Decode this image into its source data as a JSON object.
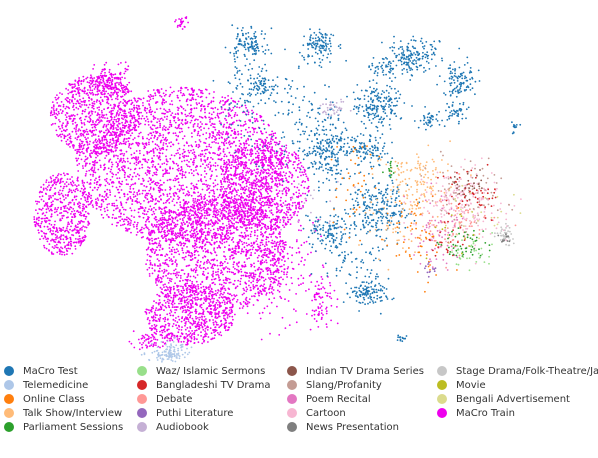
{
  "chart_data": {
    "type": "scatter",
    "title": "",
    "xlabel": "",
    "ylabel": "",
    "axes_visible": false,
    "grid": false,
    "legend_placement": "bottom",
    "legend_columns": 4,
    "series": [
      {
        "name": "MaCro Test",
        "color": "#1f77b4"
      },
      {
        "name": "Telemedicine",
        "color": "#aec7e8"
      },
      {
        "name": "Online Class",
        "color": "#ff7f0e"
      },
      {
        "name": "Talk Show/Interview",
        "color": "#ffbb78"
      },
      {
        "name": "Parliament Sessions",
        "color": "#2ca02c"
      },
      {
        "name": "Waz/ Islamic Sermons",
        "color": "#98df8a"
      },
      {
        "name": "Bangladeshi TV Drama",
        "color": "#d62728"
      },
      {
        "name": "Debate",
        "color": "#ff9896"
      },
      {
        "name": "Puthi Literature",
        "color": "#9467bd"
      },
      {
        "name": "Audiobook",
        "color": "#c5b0d5"
      },
      {
        "name": "Indian TV Drama Series",
        "color": "#8c564b"
      },
      {
        "name": "Slang/Profanity",
        "color": "#c49c94"
      },
      {
        "name": "Poem Recital",
        "color": "#e377c2"
      },
      {
        "name": "Cartoon",
        "color": "#f7b6d2"
      },
      {
        "name": "News Presentation",
        "color": "#7f7f7f"
      },
      {
        "name": "Stage Drama/Folk-Theatre/Jatra",
        "color": "#c7c7c7"
      },
      {
        "name": "Movie",
        "color": "#bcbd22"
      },
      {
        "name": "Bengali Advertisement",
        "color": "#dbdb8d"
      },
      {
        "name": "MaCro Train",
        "color": "#ee00ee"
      }
    ]
  }
}
